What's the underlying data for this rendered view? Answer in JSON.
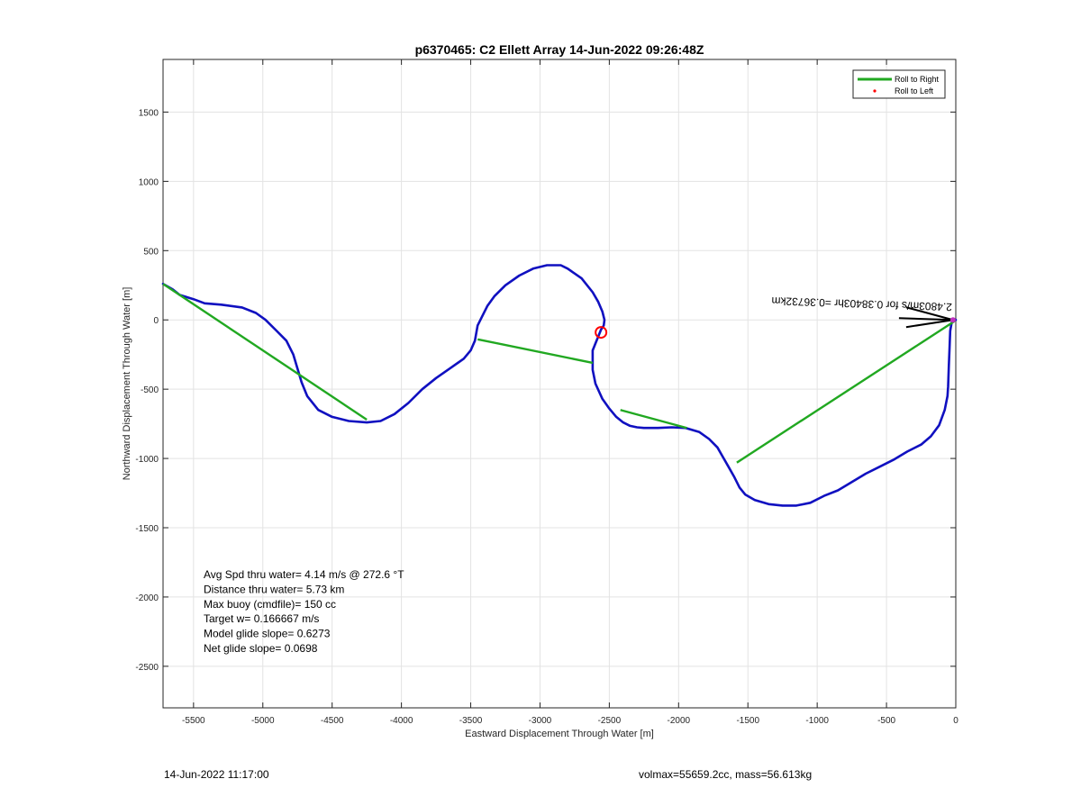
{
  "chart_data": {
    "type": "line",
    "title": "p6370465: C2 Ellett Array 14-Jun-2022 09:26:48Z",
    "xlabel": "Eastward Displacement Through Water [m]",
    "ylabel": "Northward Displacement Through Water [m]",
    "xlim": [
      -5720,
      0
    ],
    "ylim": [
      -2800,
      1880
    ],
    "xticks": [
      -5500,
      -5000,
      -4500,
      -4000,
      -3500,
      -3000,
      -2500,
      -2000,
      -1500,
      -1000,
      -500,
      0
    ],
    "yticks": [
      -2500,
      -2000,
      -1500,
      -1000,
      -500,
      0,
      500,
      1000,
      1500
    ],
    "grid": true,
    "legend": {
      "location": "top-right",
      "entries": [
        "Roll to Right",
        "Roll to Left"
      ]
    },
    "series": [
      {
        "name": "track",
        "color": "#1010c0",
        "x": [
          -5720,
          -5650,
          -5600,
          -5500,
          -5420,
          -5300,
          -5150,
          -5050,
          -4980,
          -4900,
          -4830,
          -4780,
          -4750,
          -4720,
          -4680,
          -4600,
          -4500,
          -4380,
          -4250,
          -4150,
          -4050,
          -3950,
          -3850,
          -3750,
          -3650,
          -3550,
          -3500,
          -3470,
          -3450,
          -3420,
          -3380,
          -3330,
          -3250,
          -3150,
          -3050,
          -2950,
          -2850,
          -2800,
          -2700,
          -2620,
          -2580,
          -2550,
          -2535,
          -2540,
          -2560,
          -2600,
          -2620,
          -2620,
          -2600,
          -2550,
          -2500,
          -2450,
          -2400,
          -2350,
          -2300,
          -2250,
          -2150,
          -2050,
          -1950,
          -1850,
          -1780,
          -1720,
          -1680,
          -1640,
          -1600,
          -1560,
          -1520,
          -1450,
          -1350,
          -1250,
          -1150,
          -1050,
          -950,
          -850,
          -750,
          -650,
          -550,
          -450,
          -350,
          -250,
          -180,
          -120,
          -80,
          -60,
          -55,
          -50,
          -45,
          -40,
          -30,
          -20,
          -10,
          0
        ],
        "y": [
          260,
          220,
          180,
          150,
          120,
          110,
          90,
          50,
          0,
          -80,
          -150,
          -250,
          -350,
          -450,
          -550,
          -650,
          -700,
          -730,
          -740,
          -730,
          -680,
          -600,
          -500,
          -420,
          -350,
          -280,
          -220,
          -150,
          -40,
          20,
          100,
          170,
          250,
          320,
          370,
          395,
          395,
          370,
          300,
          200,
          130,
          60,
          0,
          -40,
          -70,
          -170,
          -220,
          -360,
          -460,
          -570,
          -640,
          -700,
          -740,
          -765,
          -775,
          -780,
          -780,
          -775,
          -780,
          -810,
          -860,
          -920,
          -990,
          -1060,
          -1130,
          -1210,
          -1260,
          -1300,
          -1330,
          -1340,
          -1340,
          -1320,
          -1270,
          -1230,
          -1170,
          -1110,
          -1060,
          -1010,
          -950,
          -900,
          -840,
          -760,
          -650,
          -550,
          -480,
          -330,
          -200,
          -80,
          -20,
          0,
          0,
          0
        ]
      },
      {
        "name": "Roll to Right",
        "color": "#21a821",
        "segments": [
          {
            "x": [
              -5720,
              -4250
            ],
            "y": [
              260,
              -720
            ]
          },
          {
            "x": [
              -3450,
              -2620
            ],
            "y": [
              -140,
              -310
            ]
          },
          {
            "x": [
              -2420,
              -1940
            ],
            "y": [
              -650,
              -780
            ]
          },
          {
            "x": [
              -1580,
              -10
            ],
            "y": [
              -1030,
              -10
            ]
          }
        ]
      },
      {
        "name": "Roll to Left",
        "color": "#ff0000",
        "x": [
          -2560
        ],
        "y": [
          -90
        ]
      }
    ],
    "annotations": [
      {
        "text": "Avg Spd thru water=  4.14 m/s @ 272.6 °T"
      },
      {
        "text": "Distance thru water=  5.73 km"
      },
      {
        "text": "Max buoy (cmdfile)= 150 cc"
      },
      {
        "text": "Target w= 0.166667 m/s"
      },
      {
        "text": "Model glide slope= 0.6273"
      },
      {
        "text": "Net glide slope= 0.0698"
      }
    ],
    "arrow_label": "2.4803m/s for 0.38403hr =0.36732km"
  },
  "footer": {
    "left": "14-Jun-2022 11:17:00",
    "right": "volmax=55659.2cc, mass=56.613kg"
  }
}
